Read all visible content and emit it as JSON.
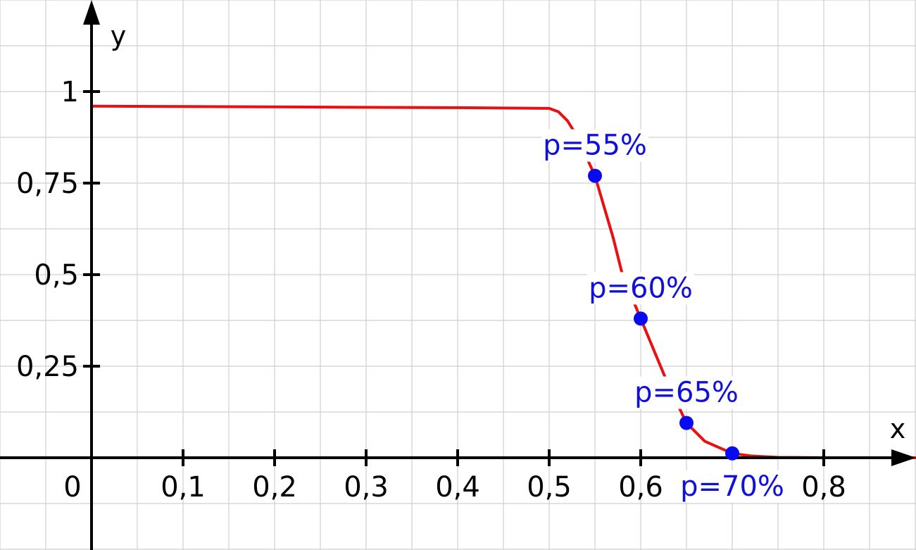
{
  "chart_data": {
    "type": "line",
    "title": "",
    "xlabel": "x",
    "ylabel": "y",
    "origin_label": "0",
    "xlim": [
      -0.1,
      0.9
    ],
    "ylim": [
      -0.25,
      1.25
    ],
    "grid": true,
    "x_ticks": [
      {
        "value": 0.1,
        "label": "0,1"
      },
      {
        "value": 0.2,
        "label": "0,2"
      },
      {
        "value": 0.3,
        "label": "0,3"
      },
      {
        "value": 0.4,
        "label": "0,4"
      },
      {
        "value": 0.5,
        "label": "0,5"
      },
      {
        "value": 0.6,
        "label": "0,6"
      },
      {
        "value": 0.8,
        "label": "0,8"
      }
    ],
    "y_ticks": [
      {
        "value": 0.25,
        "label": "0,25"
      },
      {
        "value": 0.5,
        "label": "0,5"
      },
      {
        "value": 0.75,
        "label": "0,75"
      },
      {
        "value": 1,
        "label": "1"
      }
    ],
    "curve": {
      "color": "#e81010",
      "x": [
        0,
        0.1,
        0.2,
        0.3,
        0.4,
        0.45,
        0.5,
        0.51,
        0.52,
        0.53,
        0.55,
        0.57,
        0.58,
        0.6,
        0.62,
        0.63,
        0.65,
        0.67,
        0.7,
        0.72,
        0.75,
        0.8,
        0.9
      ],
      "y": [
        0.96,
        0.959,
        0.958,
        0.957,
        0.956,
        0.955,
        0.954,
        0.945,
        0.92,
        0.88,
        0.77,
        0.6,
        0.5,
        0.38,
        0.26,
        0.2,
        0.095,
        0.045,
        0.012,
        0.005,
        0.001,
        0.0,
        0.0
      ]
    },
    "points": {
      "color": "#0a0af0",
      "items": [
        {
          "label": "p=55%",
          "x": 0.55,
          "y": 0.77
        },
        {
          "label": "p=60%",
          "x": 0.6,
          "y": 0.38
        },
        {
          "label": "p=65%",
          "x": 0.65,
          "y": 0.095
        },
        {
          "label": "p=70%",
          "x": 0.7,
          "y": 0.012
        }
      ]
    }
  }
}
